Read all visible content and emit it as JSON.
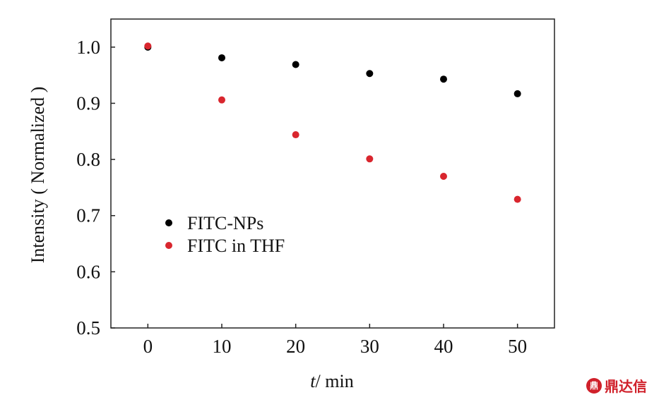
{
  "chart_data": {
    "type": "scatter",
    "x": [
      0,
      10,
      20,
      30,
      40,
      50
    ],
    "series": [
      {
        "name": "FITC-NPs",
        "color": "#000000",
        "values": [
          1.0,
          0.981,
          0.969,
          0.953,
          0.943,
          0.917
        ]
      },
      {
        "name": "FITC in THF",
        "color": "#d9262e",
        "values": [
          1.002,
          0.906,
          0.844,
          0.801,
          0.77,
          0.729
        ]
      }
    ],
    "xlabel_italic": "t",
    "xlabel_unit": "/ min",
    "ylabel": "Intensity ( Normalized )",
    "xlim": [
      -5,
      55
    ],
    "ylim": [
      0.5,
      1.05
    ],
    "xticks": [
      0,
      10,
      20,
      30,
      40,
      50
    ],
    "xtick_labels": [
      "0",
      "10",
      "20",
      "30",
      "40",
      "50"
    ],
    "yticks": [
      0.5,
      0.6,
      0.7,
      0.8,
      0.9,
      1.0
    ],
    "ytick_labels": [
      "0.5",
      "0.6",
      "0.7",
      "0.8",
      "0.9",
      "1.0"
    ],
    "grid": false,
    "legend_position": "lower-left"
  },
  "watermark": {
    "badge": "鼎",
    "text": "鼎达信"
  }
}
